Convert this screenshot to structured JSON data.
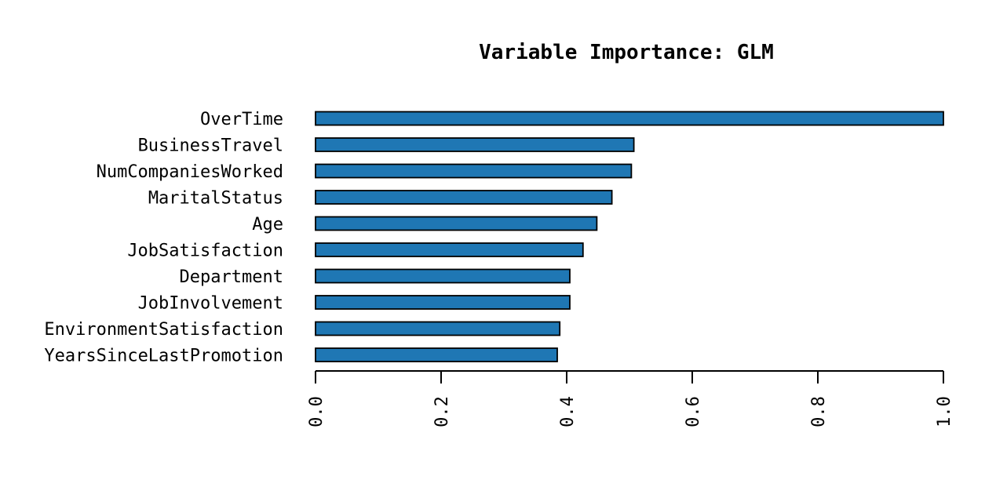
{
  "chart_data": {
    "type": "bar",
    "orientation": "horizontal",
    "title": "Variable Importance: GLM",
    "xlabel": "",
    "ylabel": "",
    "xlim": [
      0,
      1.0
    ],
    "xticks": [
      "0.0",
      "0.2",
      "0.4",
      "0.6",
      "0.8",
      "1.0"
    ],
    "xtick_values": [
      0.0,
      0.2,
      0.4,
      0.6,
      0.8,
      1.0
    ],
    "categories": [
      "OverTime",
      "BusinessTravel",
      "NumCompaniesWorked",
      "MaritalStatus",
      "Age",
      "JobSatisfaction",
      "Department",
      "JobInvolvement",
      "EnvironmentSatisfaction",
      "YearsSinceLastPromotion"
    ],
    "values": [
      1.0,
      0.507,
      0.503,
      0.472,
      0.448,
      0.426,
      0.405,
      0.405,
      0.389,
      0.385
    ],
    "bar_color": "#1f77b4",
    "bar_edge_color": "#000000",
    "grid": false,
    "legend": "none"
  }
}
